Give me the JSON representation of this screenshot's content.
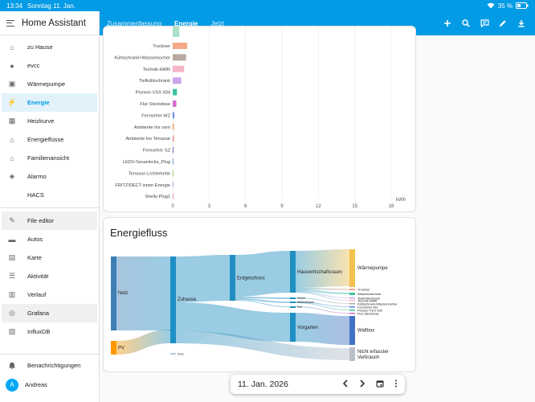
{
  "status": {
    "time": "13:34",
    "date": "Sonntag 11. Jan.",
    "battery": "35 %"
  },
  "sidebar": {
    "title": "Home Assistant",
    "items": [
      {
        "label": "zu Hause",
        "icon": "home-icon"
      },
      {
        "label": "evcc",
        "icon": "evcc-icon"
      },
      {
        "label": "Wärmepumpe",
        "icon": "heatpump-icon"
      },
      {
        "label": "Energie",
        "icon": "lightning-icon"
      },
      {
        "label": "Heizkurve",
        "icon": "dashboard-icon"
      },
      {
        "label": "Energieflüsse",
        "icon": "home-flow-icon"
      },
      {
        "label": "Familienansicht",
        "icon": "family-home-icon"
      },
      {
        "label": "Alarmo",
        "icon": "shield-icon"
      },
      {
        "label": "HACS",
        "icon": ""
      },
      {
        "label": "File editor",
        "icon": "wrench-icon"
      },
      {
        "label": "Autos",
        "icon": "car-icon"
      },
      {
        "label": "Karte",
        "icon": "map-icon"
      },
      {
        "label": "Aktivität",
        "icon": "list-icon"
      },
      {
        "label": "Verlauf",
        "icon": "chart-icon"
      },
      {
        "label": "Grafana",
        "icon": "grafana-icon"
      },
      {
        "label": "InfluxDB",
        "icon": "influx-icon"
      }
    ],
    "notifications": "Benachrichtigungen",
    "user": "Andreas",
    "user_initial": "A"
  },
  "tabs": [
    "Zusammenfassung",
    "Energie",
    "Jetzt"
  ],
  "active_tab": "Energie",
  "colors": {
    "accent": "#039be5",
    "sidebar_active_bg": "#e1f2fb"
  },
  "chart_data": [
    {
      "type": "bar",
      "orientation": "horizontal",
      "categories": [
        "Trockner",
        "Kühlschrank+Wasserkocher",
        "Technik-HWR",
        "Tiefkühlschrank",
        "Pioneer-VSX 934",
        "Flur-Steckdose",
        "Fernseher WZ",
        "Ambiente Iris vorn",
        "Ambiente Iris Terrasse",
        "Fernseher SZ",
        "LEDV-Sesselecke_Plug",
        "Terrasse-Lichterkette",
        "FRITZ!DECT innen Energie",
        "Shelly-Plug1"
      ],
      "values": [
        1.2,
        1.1,
        0.95,
        0.7,
        0.35,
        0.3,
        0.12,
        0.1,
        0.1,
        0.08,
        0.07,
        0.05,
        0.04,
        0.03
      ],
      "colors": [
        "#f4a98c",
        "#b7a9a0",
        "#f7b6c6",
        "#c9a5ea",
        "#3cc2a0",
        "#d66bd0",
        "#5d7fe0",
        "#f0a060",
        "#ee8c8c",
        "#7080c0",
        "#7fb0d8",
        "#9ed07a",
        "#c0a0e0",
        "#e8a0b0"
      ],
      "xlabel": "kWh",
      "xticks": [
        0,
        3,
        6,
        9,
        12,
        15,
        18
      ],
      "xlim": [
        0,
        18
      ]
    },
    {
      "type": "sankey",
      "title": "Energiefluss",
      "nodes": [
        "Netz",
        "PV",
        "Zuhause",
        "Erdgeschoss",
        "Hauswirtschaftsraum",
        "Vorgarten",
        "Wärmepumpe",
        "Trockner",
        "Waschmaschine",
        "Tiefkühlschrank",
        "Technik-HWR",
        "Kühlschrank+Wasserkocher",
        "Küche",
        "Wohnzimmer",
        "Flur",
        "Fernseher WZ",
        "Pioneer-VSX 934",
        "Flur-Steckdose",
        "Wallbox",
        "Nicht erfasster Verbrauch"
      ],
      "links": [
        {
          "source": "Netz",
          "target": "Zuhause",
          "value": 92
        },
        {
          "source": "PV",
          "target": "Zuhause",
          "value": 15
        },
        {
          "source": "Zuhause",
          "target": "Erdgeschoss",
          "value": 56
        },
        {
          "source": "Zuhause",
          "target": "Vorgarten",
          "value": 36
        },
        {
          "source": "Zuhause",
          "target": "Nicht erfasster Verbrauch",
          "value": 15
        },
        {
          "source": "Erdgeschoss",
          "target": "Hauswirtschaftsraum",
          "value": 52
        },
        {
          "source": "Erdgeschoss",
          "target": "Küche",
          "value": 2
        },
        {
          "source": "Erdgeschoss",
          "target": "Wohnzimmer",
          "value": 1
        },
        {
          "source": "Erdgeschoss",
          "target": "Flur",
          "value": 1
        },
        {
          "source": "Hauswirtschaftsraum",
          "target": "Wärmepumpe",
          "value": 46
        },
        {
          "source": "Hauswirtschaftsraum",
          "target": "Trockner",
          "value": 2
        },
        {
          "source": "Hauswirtschaftsraum",
          "target": "Waschmaschine",
          "value": 2
        },
        {
          "source": "Hauswirtschaftsraum",
          "target": "Tiefkühlschrank",
          "value": 1
        },
        {
          "source": "Hauswirtschaftsraum",
          "target": "Technik-HWR",
          "value": 1
        },
        {
          "source": "Küche",
          "target": "Kühlschrank+Wasserkocher",
          "value": 1
        },
        {
          "source": "Wohnzimmer",
          "target": "Fernseher WZ",
          "value": 0.5
        },
        {
          "source": "Wohnzimmer",
          "target": "Pioneer-VSX 934",
          "value": 0.5
        },
        {
          "source": "Flur",
          "target": "Flur-Steckdose",
          "value": 0.5
        },
        {
          "source": "Vorgarten",
          "target": "Wallbox",
          "value": 36
        }
      ],
      "legend": [
        "Netz"
      ]
    }
  ],
  "datebar": {
    "date": "11. Jan. 2026"
  }
}
